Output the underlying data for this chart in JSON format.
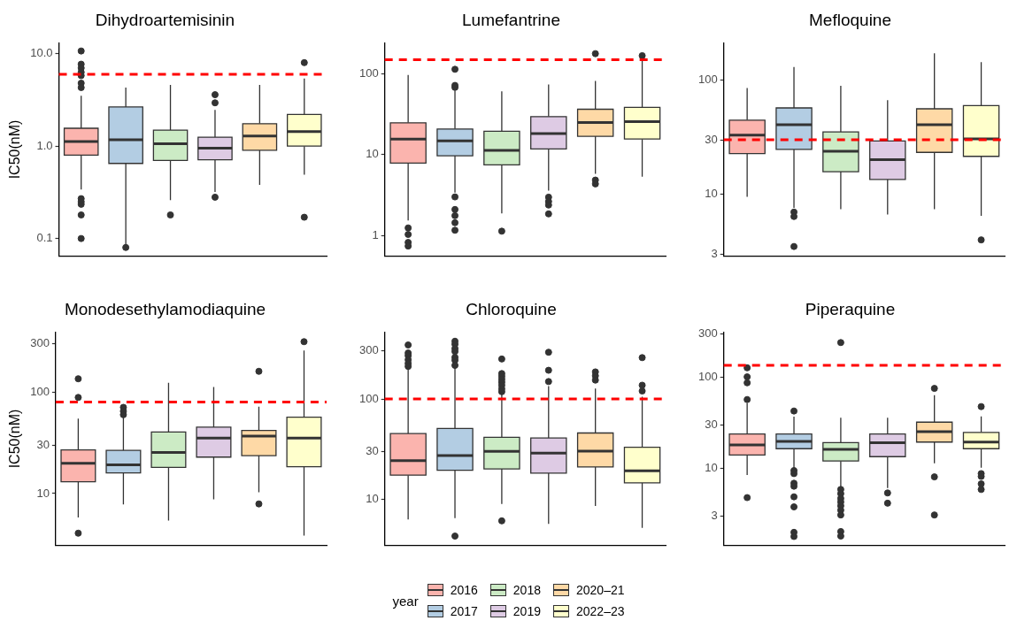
{
  "chart_data": [
    {
      "type": "box",
      "title": "Dihydroartemisinin",
      "ylabel": "IC50(nM)",
      "categories": [
        null
      ],
      "log": true,
      "tick_labels": "y",
      "ylim": [
        0.065,
        13
      ],
      "yticks": [
        0.1,
        {
          "value": 1,
          "label": "1.0"
        },
        {
          "value": 10,
          "label": "10.0"
        }
      ],
      "ref_lines": [
        {
          "axis": "y",
          "value": 6,
          "color": "#ff0000",
          "line_style": "dashed"
        }
      ],
      "series": [
        {
          "color": "#fbb4ae",
          "boxes": [
            {
              "low": 0.34,
              "q1": 0.8,
              "median": 1.12,
              "q3": 1.56,
              "high": 3.5,
              "outliers": [
                10.7,
                7.7,
                7.0,
                6.3,
                5.8,
                4.8,
                4.3,
                0.27,
                0.25,
                0.235,
                0.18,
                0.1
              ]
            }
          ]
        },
        {
          "color": "#b3cde3",
          "boxes": [
            {
              "low": 0.085,
              "q1": 0.65,
              "median": 1.17,
              "q3": 2.65,
              "high": 4.3,
              "outliers": [
                0.08
              ]
            }
          ]
        },
        {
          "color": "#ccebc5",
          "boxes": [
            {
              "low": 0.26,
              "q1": 0.7,
              "median": 1.06,
              "q3": 1.49,
              "high": 4.6,
              "outliers": [
                0.18
              ]
            }
          ]
        },
        {
          "color": "#decbe4",
          "boxes": [
            {
              "low": 0.32,
              "q1": 0.71,
              "median": 0.95,
              "q3": 1.25,
              "high": 2.46,
              "outliers": [
                3.6,
                2.94,
                0.28
              ]
            }
          ]
        },
        {
          "color": "#fed9a6",
          "boxes": [
            {
              "low": 0.38,
              "q1": 0.9,
              "median": 1.29,
              "q3": 1.75,
              "high": 4.6
            }
          ]
        },
        {
          "color": "#ffffcc",
          "boxes": [
            {
              "low": 0.49,
              "q1": 1.0,
              "median": 1.44,
              "q3": 2.2,
              "high": 5.4,
              "outliers": [
                8.0,
                0.17
              ]
            }
          ]
        }
      ]
    },
    {
      "type": "box",
      "title": "Lumefantrine",
      "categories": [
        null
      ],
      "log": true,
      "tick_labels": "y",
      "ylim": [
        0.56,
        240
      ],
      "yticks": [
        1,
        10,
        100
      ],
      "ref_lines": [
        {
          "axis": "y",
          "value": 150,
          "color": "#ff0000",
          "line_style": "dashed"
        }
      ],
      "series": [
        {
          "color": "#fbb4ae",
          "boxes": [
            {
              "low": 1.53,
              "q1": 7.85,
              "median": 15.6,
              "q3": 24.8,
              "high": 97,
              "outliers": [
                1.24,
                1.03,
                0.82,
                0.74
              ]
            }
          ]
        },
        {
          "color": "#b3cde3",
          "boxes": [
            {
              "low": 3.4,
              "q1": 9.7,
              "median": 14.8,
              "q3": 20.8,
              "high": 62,
              "outliers": [
                114,
                72,
                68,
                3.0,
                2.1,
                1.76,
                1.44,
                1.16
              ]
            }
          ]
        },
        {
          "color": "#ccebc5",
          "boxes": [
            {
              "low": 1.88,
              "q1": 7.5,
              "median": 11.3,
              "q3": 19.5,
              "high": 61,
              "outliers": [
                1.13
              ]
            }
          ]
        },
        {
          "color": "#decbe4",
          "boxes": [
            {
              "low": 3.6,
              "q1": 11.8,
              "median": 18.2,
              "q3": 29.6,
              "high": 74,
              "outliers": [
                2.98,
                2.63,
                2.38,
                1.85
              ]
            }
          ]
        },
        {
          "color": "#fed9a6",
          "boxes": [
            {
              "low": 5.8,
              "q1": 16.9,
              "median": 25,
              "q3": 36.5,
              "high": 82,
              "outliers": [
                178,
                4.85,
                4.35
              ]
            }
          ]
        },
        {
          "color": "#ffffcc",
          "boxes": [
            {
              "low": 5.35,
              "q1": 15.6,
              "median": 25.7,
              "q3": 38.6,
              "high": 160,
              "outliers": [
                168
              ]
            }
          ]
        }
      ]
    },
    {
      "type": "box",
      "title": "Mefloquine",
      "categories": [
        null
      ],
      "log": true,
      "tick_labels": "y",
      "ylim": [
        2.9,
        210
      ],
      "yticks": [
        3,
        10,
        30,
        100
      ],
      "ref_lines": [
        {
          "axis": "y",
          "value": 30,
          "color": "#ff0000",
          "line_style": "dashed"
        }
      ],
      "series": [
        {
          "color": "#fbb4ae",
          "boxes": [
            {
              "low": 9.5,
              "q1": 22.7,
              "median": 33,
              "q3": 44.6,
              "high": 85
            }
          ]
        },
        {
          "color": "#b3cde3",
          "boxes": [
            {
              "low": 7.6,
              "q1": 24.7,
              "median": 40.7,
              "q3": 57,
              "high": 130,
              "outliers": [
                7.0,
                6.4,
                3.5
              ]
            }
          ]
        },
        {
          "color": "#ccebc5",
          "boxes": [
            {
              "low": 7.4,
              "q1": 15.8,
              "median": 23.8,
              "q3": 35.2,
              "high": 89
            }
          ]
        },
        {
          "color": "#decbe4",
          "boxes": [
            {
              "low": 6.65,
              "q1": 13.5,
              "median": 20.1,
              "q3": 29.3,
              "high": 66.5
            }
          ]
        },
        {
          "color": "#fed9a6",
          "boxes": [
            {
              "low": 7.4,
              "q1": 23.3,
              "median": 40.7,
              "q3": 56,
              "high": 171
            }
          ]
        },
        {
          "color": "#ffffcc",
          "boxes": [
            {
              "low": 6.5,
              "q1": 21.5,
              "median": 30.5,
              "q3": 59.8,
              "high": 143,
              "outliers": [
                4.0
              ]
            }
          ]
        }
      ]
    },
    {
      "type": "box",
      "title": "Monodesethylamodiaquine",
      "ylabel": "IC50(nM)",
      "categories": [
        null
      ],
      "log": true,
      "tick_labels": "y",
      "ylim": [
        3.1,
        390
      ],
      "yticks": [
        10,
        30,
        100,
        300
      ],
      "ref_lines": [
        {
          "axis": "y",
          "value": 80,
          "color": "#ff0000",
          "line_style": "dashed"
        }
      ],
      "series": [
        {
          "color": "#fbb4ae",
          "boxes": [
            {
              "low": 5.8,
              "q1": 13.1,
              "median": 19.9,
              "q3": 27,
              "high": 55,
              "outliers": [
                136,
                89,
                4.06
              ]
            }
          ]
        },
        {
          "color": "#b3cde3",
          "boxes": [
            {
              "low": 7.8,
              "q1": 16,
              "median": 19.2,
              "q3": 26.7,
              "high": 57,
              "outliers": [
                71,
                65,
                60
              ]
            }
          ]
        },
        {
          "color": "#ccebc5",
          "boxes": [
            {
              "low": 5.4,
              "q1": 18.1,
              "median": 25.5,
              "q3": 40.6,
              "high": 124
            }
          ]
        },
        {
          "color": "#decbe4",
          "boxes": [
            {
              "low": 8.75,
              "q1": 22.9,
              "median": 35.3,
              "q3": 45.2,
              "high": 113
            }
          ]
        },
        {
          "color": "#fed9a6",
          "boxes": [
            {
              "low": 10.3,
              "q1": 23.7,
              "median": 37,
              "q3": 42,
              "high": 72,
              "outliers": [
                161,
                7.9
              ]
            }
          ]
        },
        {
          "color": "#ffffcc",
          "boxes": [
            {
              "low": 3.85,
              "q1": 18.4,
              "median": 35.3,
              "q3": 56.8,
              "high": 258,
              "outliers": [
                316
              ]
            }
          ]
        }
      ]
    },
    {
      "type": "box",
      "title": "Chloroquine",
      "categories": [
        null
      ],
      "log": true,
      "tick_labels": "y",
      "ylim": [
        3.5,
        460
      ],
      "yticks": [
        10,
        30,
        100,
        300
      ],
      "legend": "bottom",
      "legend_title": "year",
      "ref_lines": [
        {
          "axis": "y",
          "value": 100,
          "color": "#ff0000",
          "line_style": "dashed"
        }
      ],
      "series": [
        {
          "name": "2016",
          "color": "#fbb4ae",
          "boxes": [
            {
              "low": 6.3,
              "q1": 17.4,
              "median": 24.3,
              "q3": 45.2,
              "high": 199,
              "outliers": [
                345,
                287,
                270,
                246,
                226,
                211
              ]
            }
          ]
        },
        {
          "name": "2017",
          "color": "#b3cde3",
          "boxes": [
            {
              "low": 6.5,
              "q1": 19.5,
              "median": 27.3,
              "q3": 50.7,
              "high": 205,
              "outliers": [
                376,
                351,
                318,
                297,
                260,
                243,
                216,
                4.3
              ]
            }
          ]
        },
        {
          "name": "2018",
          "color": "#ccebc5",
          "boxes": [
            {
              "low": 9,
              "q1": 20.1,
              "median": 30,
              "q3": 41.4,
              "high": 115,
              "outliers": [
                250,
                179,
                168,
                157,
                147,
                137,
                126,
                118,
                6.1
              ]
            }
          ]
        },
        {
          "name": "2019",
          "color": "#decbe4",
          "boxes": [
            {
              "low": 5.7,
              "q1": 18.2,
              "median": 28.8,
              "q3": 40.8,
              "high": 134,
              "outliers": [
                292,
                193,
                149
              ]
            }
          ]
        },
        {
          "name": "2020–21",
          "color": "#fed9a6",
          "boxes": [
            {
              "low": 8.6,
              "q1": 21,
              "median": 30.2,
              "q3": 45.8,
              "high": 127,
              "outliers": [
                186,
                170,
                154
              ]
            }
          ]
        },
        {
          "name": "2022–23",
          "color": "#ffffcc",
          "boxes": [
            {
              "low": 5.2,
              "q1": 14.6,
              "median": 19.2,
              "q3": 33,
              "high": 105,
              "outliers": [
                258,
                137,
                120
              ]
            }
          ]
        }
      ]
    },
    {
      "type": "box",
      "title": "Piperaquine",
      "categories": [
        null
      ],
      "log": true,
      "tick_labels": "y",
      "ylim": [
        1.45,
        310
      ],
      "yticks": [
        3,
        10,
        30,
        100,
        300
      ],
      "ref_lines": [
        {
          "axis": "y",
          "value": 135,
          "color": "#ff0000",
          "line_style": "dashed"
        }
      ],
      "series": [
        {
          "color": "#fbb4ae",
          "boxes": [
            {
              "low": 8.5,
              "q1": 14.1,
              "median": 18.1,
              "q3": 23.9,
              "high": 52,
              "outliers": [
                127,
                101,
                87,
                57,
                4.8
              ]
            }
          ]
        },
        {
          "color": "#b3cde3",
          "boxes": [
            {
              "low": 10.2,
              "q1": 16.5,
              "median": 19.8,
              "q3": 23.9,
              "high": 37,
              "outliers": [
                42.7,
                9.5,
                8.8,
                6.9,
                6.4,
                4.9,
                3.8,
                2.0,
                1.8
              ]
            }
          ]
        },
        {
          "color": "#ccebc5",
          "boxes": [
            {
              "low": 6.1,
              "q1": 12.1,
              "median": 16.2,
              "q3": 19.2,
              "high": 36,
              "outliers": [
                240,
                5.9,
                5.3,
                4.7,
                4.3,
                3.9,
                3.5,
                3.1,
                2.04,
                1.82
              ]
            }
          ]
        },
        {
          "color": "#decbe4",
          "boxes": [
            {
              "low": 6.1,
              "q1": 13.5,
              "median": 19.2,
              "q3": 23.9,
              "high": 36,
              "outliers": [
                5.4,
                4.17
              ]
            }
          ]
        },
        {
          "color": "#fed9a6",
          "boxes": [
            {
              "low": 11.4,
              "q1": 19.5,
              "median": 25.4,
              "q3": 32.2,
              "high": 63.7,
              "outliers": [
                75.5,
                8.1,
                3.1
              ]
            }
          ]
        },
        {
          "color": "#ffffcc",
          "boxes": [
            {
              "low": 10.2,
              "q1": 16.5,
              "median": 19.5,
              "q3": 24.9,
              "high": 37.3,
              "outliers": [
                47.7,
                8.8,
                8.2,
                6.8,
                5.9
              ]
            }
          ]
        }
      ]
    }
  ]
}
